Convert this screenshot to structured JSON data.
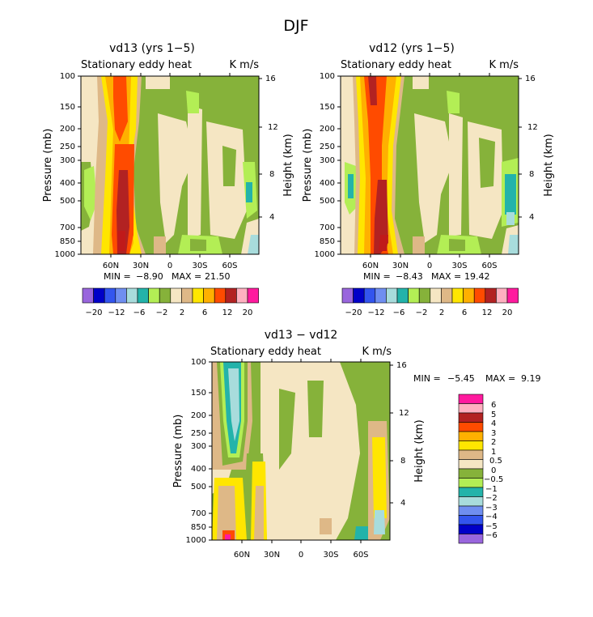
{
  "page_title": "DJF",
  "panels": [
    {
      "id": "vd13",
      "title": "vd13 (yrs 1−5)",
      "subtitle_left": "Stationary eddy heat",
      "subtitle_right": "K m/s",
      "ylabel_left": "Pressure (mb)",
      "ylabel_right": "Height (km)",
      "pressure_ticks": [
        "100",
        "150",
        "200",
        "250",
        "300",
        "400",
        "500",
        "700",
        "850",
        "1000"
      ],
      "height_ticks": [
        "16",
        "12",
        "8",
        "4"
      ],
      "lat_ticks": [
        "60N",
        "30N",
        "0",
        "30S",
        "60S"
      ],
      "min_label": "MIN =",
      "min_value": "−8.90",
      "max_label": "MAX =",
      "max_value": "21.50",
      "colorbar_labels": [
        "−20",
        "−12",
        "−6",
        "−2",
        "2",
        "6",
        "12",
        "20"
      ]
    },
    {
      "id": "vd12",
      "title": "vd12 (yrs 1−5)",
      "subtitle_left": "Stationary eddy heat",
      "subtitle_right": "K m/s",
      "ylabel_left": "Pressure (mb)",
      "ylabel_right": "Height (km)",
      "pressure_ticks": [
        "100",
        "150",
        "200",
        "250",
        "300",
        "400",
        "500",
        "700",
        "850",
        "1000"
      ],
      "height_ticks": [
        "16",
        "12",
        "8",
        "4"
      ],
      "lat_ticks": [
        "60N",
        "30N",
        "0",
        "30S",
        "60S"
      ],
      "min_label": "MIN =",
      "min_value": "−8.43",
      "max_label": "MAX =",
      "max_value": "19.42",
      "colorbar_labels": [
        "−20",
        "−12",
        "−6",
        "−2",
        "2",
        "6",
        "12",
        "20"
      ]
    },
    {
      "id": "diff",
      "title": "vd13 − vd12",
      "subtitle_left": "Stationary eddy heat",
      "subtitle_right": "K m/s",
      "ylabel_left": "Pressure (mb)",
      "ylabel_right": "Height (km)",
      "pressure_ticks": [
        "100",
        "150",
        "200",
        "250",
        "300",
        "400",
        "500",
        "700",
        "850",
        "1000"
      ],
      "height_ticks": [
        "16",
        "12",
        "8",
        "4"
      ],
      "lat_ticks": [
        "60N",
        "30N",
        "0",
        "30S",
        "60S"
      ],
      "min_label": "MIN =",
      "min_value": "−5.45",
      "max_label": "MAX =",
      "max_value": "9.19",
      "colorbar_labels": [
        "6",
        "5",
        "4",
        "3",
        "2",
        "1",
        "0.5",
        "0",
        "−0.5",
        "−1",
        "−2",
        "−3",
        "−4",
        "−5",
        "−6"
      ]
    }
  ],
  "colors": {
    "top_scale": [
      "#9966dd",
      "#0000c8",
      "#3355ee",
      "#6f8ef0",
      "#a8dcdc",
      "#23b3aa",
      "#b3ee55",
      "#86b23a",
      "#f5e6c3",
      "#deb887",
      "#ffe600",
      "#ffb000",
      "#ff4b00",
      "#b22222",
      "#ffb0c0",
      "#ff1a9e"
    ],
    "diff_scale": [
      "#ff1a9e",
      "#ffb0c0",
      "#b22222",
      "#ff4b00",
      "#ffb000",
      "#ffe600",
      "#deb887",
      "#f5e6c3",
      "#86b23a",
      "#b3ee55",
      "#23b3aa",
      "#a8dcdc",
      "#6f8ef0",
      "#3355ee",
      "#0000c8",
      "#9966dd"
    ]
  },
  "chart_data": [
    {
      "type": "heatmap",
      "title": "vd13 (yrs 1−5)",
      "subtitle": "Stationary eddy heat",
      "units": "K m/s",
      "xlabel": "",
      "ylabel": "Pressure (mb)",
      "y2label": "Height (km)",
      "x_ticks": [
        "60N",
        "30N",
        "0",
        "30S",
        "60S"
      ],
      "x_range": [
        "~90N",
        "~90S"
      ],
      "y_range_mb": [
        1000,
        100
      ],
      "y_log_scale": true,
      "contour_levels": [
        -20,
        -16,
        -12,
        -8,
        -6,
        -4,
        -2,
        -1,
        0,
        1,
        2,
        4,
        6,
        8,
        12,
        16,
        20
      ],
      "min": -8.9,
      "max": 21.5,
      "features": [
        {
          "desc": "maximum near 40N",
          "lat": 40,
          "pressure_mb_range": [
            400,
            1000
          ],
          "value_range": [
            12,
            21.5
          ]
        },
        {
          "desc": "positive tower 35-45N",
          "lat": 40,
          "pressure_mb_range": [
            100,
            1000
          ],
          "value_range": [
            4,
            12
          ]
        }
      ]
    },
    {
      "type": "heatmap",
      "title": "vd12 (yrs 1−5)",
      "subtitle": "Stationary eddy heat",
      "units": "K m/s",
      "ylabel": "Pressure (mb)",
      "y2label": "Height (km)",
      "x_ticks": [
        "60N",
        "30N",
        "0",
        "30S",
        "60S"
      ],
      "y_range_mb": [
        1000,
        100
      ],
      "y_log_scale": true,
      "contour_levels": [
        -20,
        -16,
        -12,
        -8,
        -6,
        -4,
        -2,
        -1,
        0,
        1,
        2,
        4,
        6,
        8,
        12,
        16,
        20
      ],
      "min": -8.43,
      "max": 19.42,
      "features": [
        {
          "desc": "maximum near 45N",
          "lat": 45,
          "pressure_mb_range": [
            400,
            1000
          ],
          "value_range": [
            12,
            19.42
          ]
        },
        {
          "desc": "positive tower 40-55N reaching 100 mb",
          "lat": 50,
          "pressure_mb_range": [
            100,
            1000
          ],
          "value_range": [
            6,
            12
          ]
        }
      ]
    },
    {
      "type": "heatmap",
      "title": "vd13 − vd12",
      "subtitle": "Stationary eddy heat",
      "units": "K m/s",
      "ylabel": "Pressure (mb)",
      "y2label": "Height (km)",
      "x_ticks": [
        "60N",
        "30N",
        "0",
        "30S",
        "60S"
      ],
      "y_range_mb": [
        1000,
        100
      ],
      "y_log_scale": true,
      "contour_levels": [
        -6,
        -5,
        -4,
        -3,
        -2,
        -1,
        -0.5,
        0,
        0.5,
        1,
        2,
        3,
        4,
        5,
        6
      ],
      "min": -5.45,
      "max": 9.19,
      "features": [
        {
          "desc": "negative plume near 60N aloft",
          "lat": 60,
          "pressure_mb_range": [
            100,
            500
          ],
          "value_range": [
            -2,
            -1
          ]
        },
        {
          "desc": "positive low-level near 65N",
          "lat": 65,
          "pressure_mb_range": [
            500,
            1000
          ],
          "value_range": [
            1,
            2
          ]
        },
        {
          "desc": "positive band near 35N",
          "lat": 35,
          "pressure_mb_range": [
            300,
            1000
          ],
          "value_range": [
            0.5,
            2
          ]
        }
      ]
    }
  ]
}
